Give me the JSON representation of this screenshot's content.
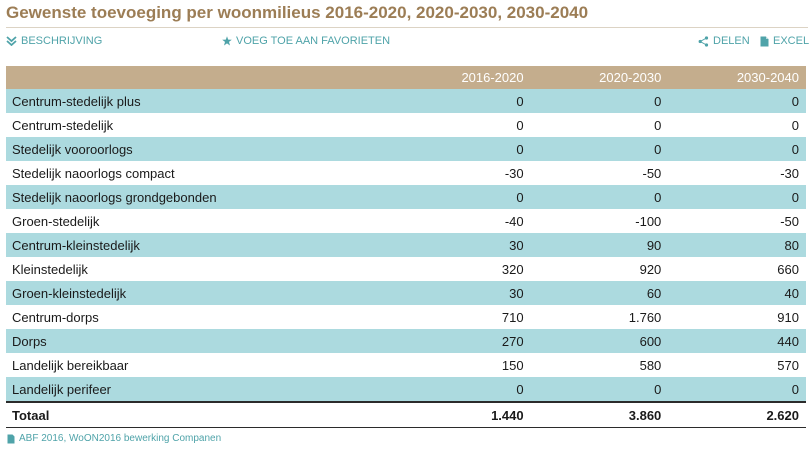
{
  "title": "Gewenste toevoeging per woonmilieus 2016-2020, 2020-2030, 2030-2040",
  "toolbar": {
    "description": {
      "label": "BESCHRIJVING",
      "icon": "expand-icon"
    },
    "favorite": {
      "label": "VOEG TOE AAN FAVORIETEN",
      "icon": "star-icon"
    },
    "share": {
      "label": "DELEN",
      "icon": "share-icon"
    },
    "excel": {
      "label": "EXCEL",
      "icon": "document-icon"
    }
  },
  "table": {
    "columns": [
      "",
      "2016-2020",
      "2020-2030",
      "2030-2040"
    ],
    "rows": [
      {
        "label": "Centrum-stedelijk plus",
        "values": [
          "0",
          "0",
          "0"
        ]
      },
      {
        "label": "Centrum-stedelijk",
        "values": [
          "0",
          "0",
          "0"
        ]
      },
      {
        "label": "Stedelijk vooroorlogs",
        "values": [
          "0",
          "0",
          "0"
        ]
      },
      {
        "label": "Stedelijk naoorlogs compact",
        "values": [
          "-30",
          "-50",
          "-30"
        ]
      },
      {
        "label": "Stedelijk naoorlogs grondgebonden",
        "values": [
          "0",
          "0",
          "0"
        ]
      },
      {
        "label": "Groen-stedelijk",
        "values": [
          "-40",
          "-100",
          "-50"
        ]
      },
      {
        "label": "Centrum-kleinstedelijk",
        "values": [
          "30",
          "90",
          "80"
        ]
      },
      {
        "label": "Kleinstedelijk",
        "values": [
          "320",
          "920",
          "660"
        ]
      },
      {
        "label": "Groen-kleinstedelijk",
        "values": [
          "30",
          "60",
          "40"
        ]
      },
      {
        "label": "Centrum-dorps",
        "values": [
          "710",
          "1.760",
          "910"
        ]
      },
      {
        "label": "Dorps",
        "values": [
          "270",
          "600",
          "440"
        ]
      },
      {
        "label": "Landelijk bereikbaar",
        "values": [
          "150",
          "580",
          "570"
        ]
      },
      {
        "label": "Landelijk perifeer",
        "values": [
          "0",
          "0",
          "0"
        ]
      }
    ],
    "total": {
      "label": "Totaal",
      "values": [
        "1.440",
        "3.860",
        "2.620"
      ]
    }
  },
  "source": {
    "text": "ABF 2016, WoON2016 bewerking Companen",
    "icon": "document-icon"
  },
  "colors": {
    "title": "#9c7d55",
    "header_bg": "#c4ad8d",
    "row_alt_bg": "#acdadf",
    "accent": "#4fa3a9"
  }
}
